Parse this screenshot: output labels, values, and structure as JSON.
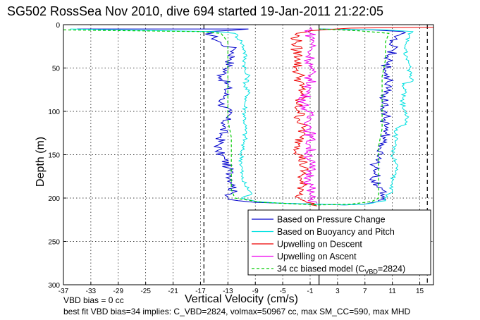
{
  "chart_data": {
    "type": "line",
    "title": "SG502 RossSea Nov 2010, dive 694 started 19-Jan-2011 21:22:05",
    "xlabel": "Vertical Velocity (cm/s)",
    "ylabel": "Depth (m)",
    "xlim": [
      -37,
      17
    ],
    "ylim": [
      0,
      300
    ],
    "y_reversed": true,
    "grid": true,
    "legend_position": "bottom-right",
    "xticks": [
      -37,
      -33,
      -29,
      -25,
      -21,
      -17,
      -13,
      -9,
      -5,
      -1,
      3,
      7,
      11,
      15
    ],
    "yticks": [
      0,
      50,
      100,
      150,
      200,
      250,
      300
    ],
    "vertical_lines": [
      {
        "x": -16.5,
        "style": "dashed",
        "color": "#000000"
      },
      {
        "x": 16.1,
        "style": "dashed",
        "color": "#000000"
      },
      {
        "x": 0.3,
        "style": "solid",
        "color": "#000000"
      }
    ],
    "series": [
      {
        "name": "Based on Pressure Change",
        "color": "#0000cc",
        "points": [
          [
            -35,
            5
          ],
          [
            -10,
            5
          ],
          [
            -16,
            8
          ],
          [
            -15,
            15
          ],
          [
            -14,
            22
          ],
          [
            -12,
            28
          ],
          [
            -12.5,
            40
          ],
          [
            -13,
            50
          ],
          [
            -14,
            60
          ],
          [
            -13,
            70
          ],
          [
            -13.5,
            85
          ],
          [
            -14,
            90
          ],
          [
            -13,
            100
          ],
          [
            -13.5,
            115
          ],
          [
            -14,
            130
          ],
          [
            -14.5,
            145
          ],
          [
            -13.5,
            155
          ],
          [
            -13,
            165
          ],
          [
            -12.5,
            175
          ],
          [
            -12,
            185
          ],
          [
            -12.5,
            195
          ],
          [
            -13,
            200
          ],
          [
            -11.5,
            203
          ],
          [
            -9,
            205
          ],
          [
            -5,
            206
          ],
          [
            0,
            207
          ],
          [
            4,
            208
          ],
          [
            7,
            207
          ],
          [
            9,
            204
          ],
          [
            9.5,
            200
          ],
          [
            9.5,
            190
          ],
          [
            8.5,
            180
          ],
          [
            8.5,
            170
          ],
          [
            8.5,
            160
          ],
          [
            9,
            150
          ],
          [
            9,
            140
          ],
          [
            10,
            130
          ],
          [
            10,
            120
          ],
          [
            10,
            110
          ],
          [
            10,
            100
          ],
          [
            9.5,
            90
          ],
          [
            10,
            80
          ],
          [
            10.5,
            70
          ],
          [
            10.5,
            60
          ],
          [
            10,
            50
          ],
          [
            10.5,
            40
          ],
          [
            11,
            30
          ],
          [
            11,
            20
          ],
          [
            12,
            12
          ],
          [
            12.5,
            8
          ],
          [
            8,
            6
          ],
          [
            0.3,
            5
          ]
        ]
      },
      {
        "name": "Based on Buoyancy and Pitch",
        "color": "#00e0e0",
        "points": [
          [
            -36,
            5
          ],
          [
            -15,
            8
          ],
          [
            -12,
            10
          ],
          [
            -11,
            20
          ],
          [
            -10.5,
            30
          ],
          [
            -10.5,
            45
          ],
          [
            -10.5,
            55
          ],
          [
            -10,
            60
          ],
          [
            -10.5,
            70
          ],
          [
            -10,
            80
          ],
          [
            -10.5,
            90
          ],
          [
            -10.5,
            100
          ],
          [
            -10.5,
            115
          ],
          [
            -10.5,
            130
          ],
          [
            -11,
            145
          ],
          [
            -11,
            160
          ],
          [
            -11,
            175
          ],
          [
            -10.5,
            185
          ],
          [
            -9.5,
            195
          ],
          [
            -11,
            200
          ],
          [
            -9,
            204
          ],
          [
            -5,
            206
          ],
          [
            0,
            207
          ],
          [
            4,
            208
          ],
          [
            7,
            207
          ],
          [
            10,
            203
          ],
          [
            10.5,
            195
          ],
          [
            11,
            190
          ],
          [
            11,
            180
          ],
          [
            11.5,
            170
          ],
          [
            11.5,
            160
          ],
          [
            11,
            150
          ],
          [
            11.5,
            140
          ],
          [
            11.5,
            130
          ],
          [
            11.5,
            120
          ],
          [
            13,
            115
          ],
          [
            13,
            105
          ],
          [
            12.5,
            95
          ],
          [
            12.5,
            85
          ],
          [
            13,
            75
          ],
          [
            12.5,
            68
          ],
          [
            14,
            65
          ],
          [
            13.5,
            60
          ],
          [
            13.5,
            50
          ],
          [
            13,
            40
          ],
          [
            13,
            30
          ],
          [
            13,
            20
          ],
          [
            13.5,
            12
          ],
          [
            14,
            8
          ],
          [
            10,
            6
          ],
          [
            0.3,
            5
          ]
        ]
      },
      {
        "name": "Upwelling on Descent",
        "color": "#ee0000",
        "points": [
          [
            17,
            3
          ],
          [
            5,
            4
          ],
          [
            -1,
            7
          ],
          [
            -3,
            10
          ],
          [
            -3,
            20
          ],
          [
            -3,
            30
          ],
          [
            -2.5,
            40
          ],
          [
            -3,
            50
          ],
          [
            -2.5,
            60
          ],
          [
            -2.5,
            70
          ],
          [
            -2,
            80
          ],
          [
            -3,
            90
          ],
          [
            -2.5,
            100
          ],
          [
            -2.5,
            110
          ],
          [
            -2,
            120
          ],
          [
            -2.5,
            130
          ],
          [
            -2.5,
            140
          ],
          [
            -2.5,
            150
          ],
          [
            -2,
            160
          ],
          [
            -2,
            170
          ],
          [
            -2.5,
            180
          ],
          [
            -2,
            190
          ],
          [
            -2.5,
            200
          ],
          [
            -1.5,
            205
          ],
          [
            0,
            209
          ]
        ]
      },
      {
        "name": "Upwelling on Ascent",
        "color": "#ee00ee",
        "points": [
          [
            -1,
            3
          ],
          [
            -1,
            10
          ],
          [
            -0.5,
            20
          ],
          [
            -1,
            30
          ],
          [
            -1,
            40
          ],
          [
            -1,
            50
          ],
          [
            -1,
            60
          ],
          [
            -1,
            70
          ],
          [
            -1.5,
            80
          ],
          [
            -2,
            90
          ],
          [
            -1.5,
            100
          ],
          [
            -1,
            110
          ],
          [
            -1,
            120
          ],
          [
            -1,
            130
          ],
          [
            -1,
            140
          ],
          [
            -1,
            150
          ],
          [
            -1,
            160
          ],
          [
            -1,
            170
          ],
          [
            -1,
            180
          ],
          [
            -1,
            190
          ],
          [
            -1,
            200
          ],
          [
            0,
            206
          ]
        ]
      },
      {
        "name": "34 cc biased model (CVBD=2824)",
        "color": "#00cc00",
        "dashed": true,
        "points": [
          [
            -37,
            6
          ],
          [
            -17,
            8
          ],
          [
            -14,
            10
          ],
          [
            -13,
            20
          ],
          [
            -13,
            30
          ],
          [
            -13,
            50
          ],
          [
            -13,
            70
          ],
          [
            -13,
            90
          ],
          [
            -13,
            110
          ],
          [
            -12.5,
            130
          ],
          [
            -12.5,
            150
          ],
          [
            -12.5,
            170
          ],
          [
            -12.5,
            190
          ],
          [
            -12,
            200
          ],
          [
            -8,
            205
          ],
          [
            0,
            208
          ],
          [
            5,
            207
          ],
          [
            8,
            204
          ],
          [
            9,
            200
          ],
          [
            9,
            180
          ],
          [
            9,
            160
          ],
          [
            9,
            140
          ],
          [
            9.5,
            120
          ],
          [
            9.5,
            100
          ],
          [
            9.5,
            80
          ],
          [
            9.5,
            60
          ],
          [
            10,
            40
          ],
          [
            10,
            20
          ],
          [
            10.5,
            10
          ],
          [
            6,
            7
          ],
          [
            0.3,
            5
          ]
        ]
      }
    ]
  },
  "legend": {
    "items": [
      {
        "label": "Based on Pressure Change",
        "color": "#0000cc"
      },
      {
        "label": "Based on Buoyancy and Pitch",
        "color": "#00e0e0"
      },
      {
        "label": "Upwelling on Descent",
        "color": "#ee0000"
      },
      {
        "label": "Upwelling on Ascent",
        "color": "#ee00ee"
      },
      {
        "label_prefix": "34 cc biased model (C",
        "label_sub": "VBD",
        "label_suffix": "=2824)",
        "color": "#00cc00"
      }
    ]
  },
  "footer": {
    "line1": "VBD bias = 0 cc",
    "line2": "best fit VBD bias=34 implies: C_VBD=2824, volmax=50967 cc, max SM_CC=590, max MHD"
  }
}
